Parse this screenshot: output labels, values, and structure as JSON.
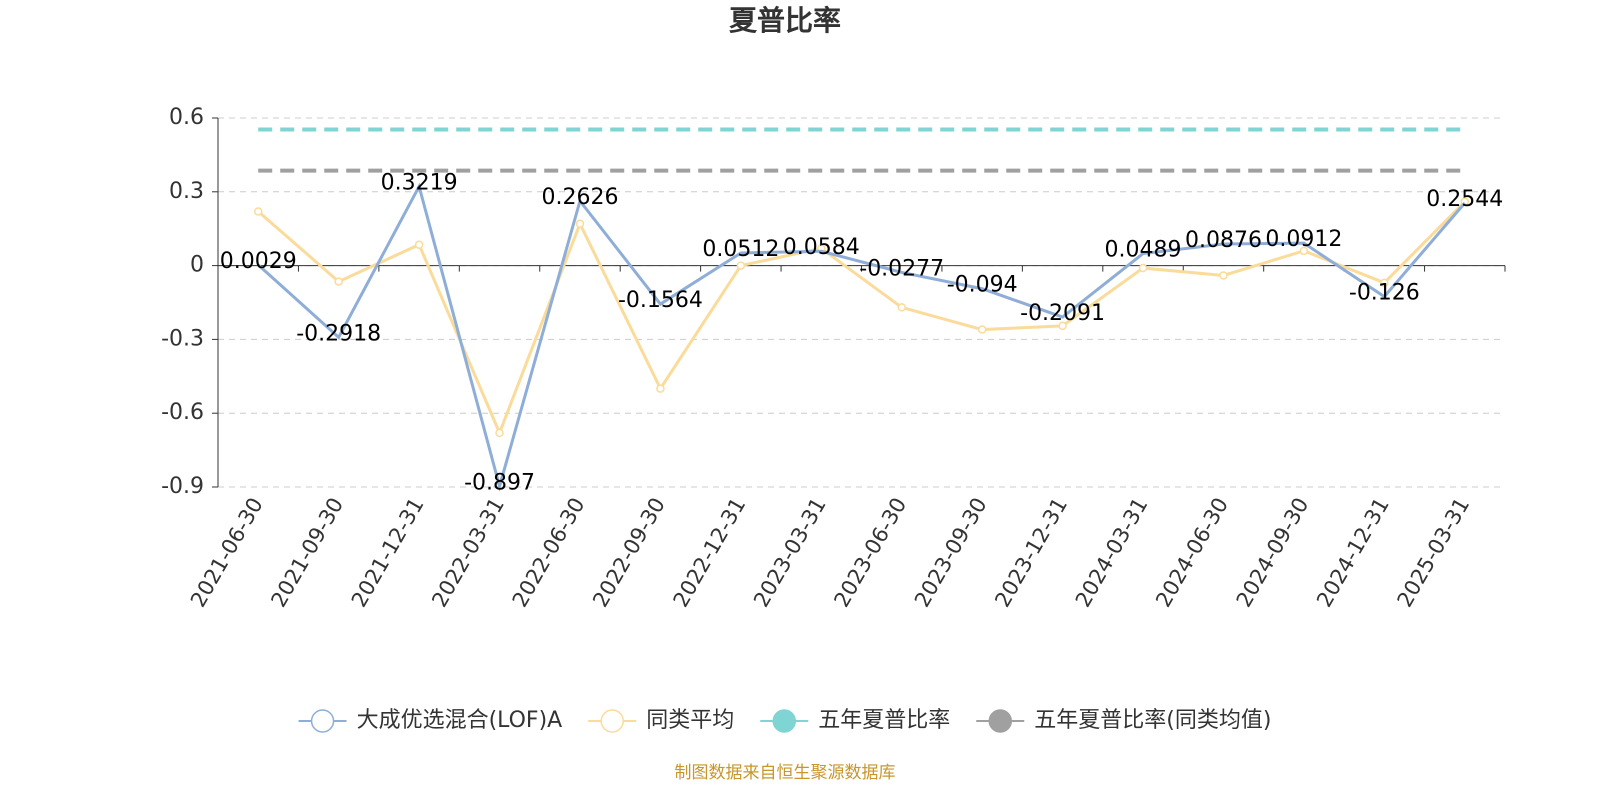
{
  "chart_data": {
    "type": "line",
    "title": "夏普比率",
    "source": "制图数据来自恒生聚源数据库",
    "categories": [
      "2021-06-30",
      "2021-09-30",
      "2021-12-31",
      "2022-03-31",
      "2022-06-30",
      "2022-09-30",
      "2022-12-31",
      "2023-03-31",
      "2023-06-30",
      "2023-09-30",
      "2023-12-31",
      "2024-03-31",
      "2024-06-30",
      "2024-09-30",
      "2024-12-31",
      "2025-03-31"
    ],
    "series": [
      {
        "name": "大成优选混合(LOF)A",
        "color": "#8eaed8",
        "labels": true,
        "values": [
          0.0029,
          -0.2918,
          0.3219,
          -0.897,
          0.2626,
          -0.1564,
          0.0512,
          0.0584,
          -0.0277,
          -0.094,
          -0.2091,
          0.0489,
          0.0876,
          0.0912,
          -0.126,
          0.2544
        ]
      },
      {
        "name": "同类平均",
        "color": "#fadb9a",
        "labels": false,
        "values": [
          0.22,
          -0.065,
          0.085,
          -0.68,
          0.17,
          -0.5,
          0.0,
          0.07,
          -0.17,
          -0.26,
          -0.245,
          -0.01,
          -0.04,
          0.06,
          -0.07,
          0.26
        ]
      }
    ],
    "reference_lines": [
      {
        "name": "五年夏普比率",
        "color": "#80d4d4",
        "value": 0.553
      },
      {
        "name": "五年夏普比率(同类均值)",
        "color": "#a0a0a0",
        "value": 0.386
      }
    ],
    "ylim": [
      -0.9,
      0.6
    ],
    "yticks": [
      -0.9,
      -0.6,
      -0.3,
      0,
      0.3,
      0.6
    ],
    "grid": true
  }
}
